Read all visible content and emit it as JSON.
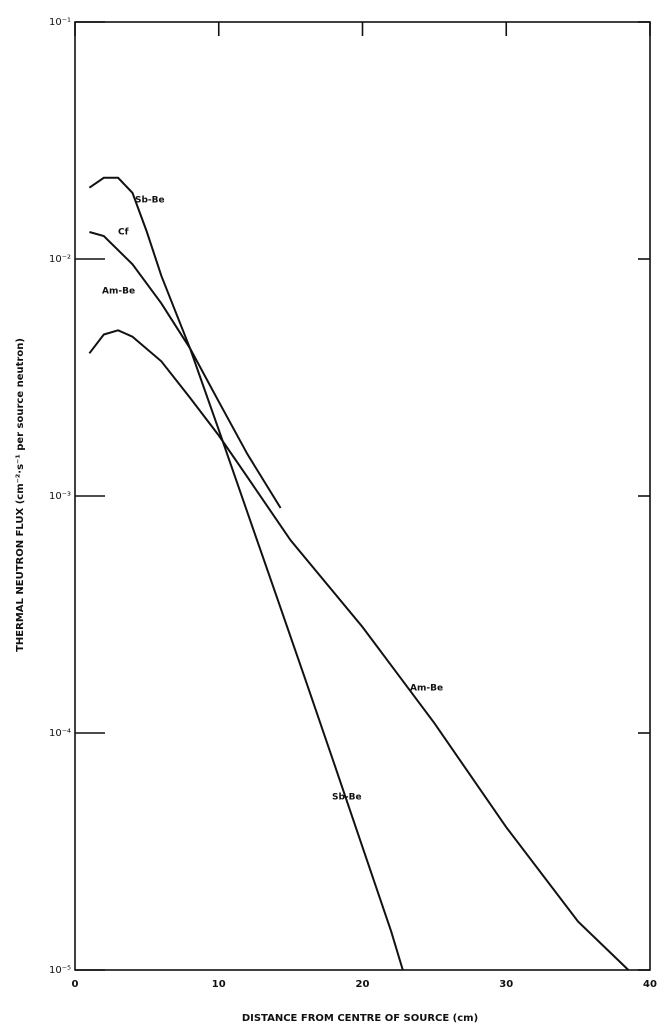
{
  "chart_data": {
    "type": "line",
    "x_label": "DISTANCE FROM CENTRE OF SOURCE (cm)",
    "y_label": "THERMAL NEUTRON FLUX (cm⁻²·s⁻¹ per source neutron)",
    "xlim": [
      0,
      40
    ],
    "xticks": [
      0,
      10,
      20,
      30,
      40
    ],
    "ylim": [
      1e-05,
      0.1
    ],
    "yticks": [
      {
        "value": 0.1,
        "label": "10⁻¹"
      },
      {
        "value": 0.01,
        "label": "10⁻²"
      },
      {
        "value": 0.001,
        "label": "10⁻³"
      },
      {
        "value": 0.0001,
        "label": "10⁻⁴"
      },
      {
        "value": 1e-05,
        "label": "10⁻⁵"
      }
    ],
    "y_log_scale": true,
    "grid": false,
    "series": [
      {
        "name": "Sb-Be",
        "color": "#111111",
        "x": [
          1,
          2,
          3,
          4,
          5,
          6,
          8,
          10,
          12,
          14,
          16,
          18,
          20,
          22,
          22.8
        ],
        "values": [
          0.02,
          0.022,
          0.022,
          0.019,
          0.013,
          0.0085,
          0.0042,
          0.0019,
          0.00085,
          0.00038,
          0.00017,
          7.5e-05,
          3.3e-05,
          1.45e-05,
          1e-05
        ]
      },
      {
        "name": "Cf",
        "color": "#111111",
        "x": [
          1,
          2,
          4,
          6,
          8,
          10,
          12,
          14.3
        ],
        "values": [
          0.013,
          0.0125,
          0.0095,
          0.0065,
          0.0042,
          0.0025,
          0.0015,
          0.00089
        ]
      },
      {
        "name": "Am-Be",
        "color": "#111111",
        "x": [
          1,
          2,
          3,
          4,
          6,
          8,
          10,
          12,
          15,
          20,
          25,
          30,
          35,
          38.5
        ],
        "values": [
          0.004,
          0.0048,
          0.005,
          0.0047,
          0.0037,
          0.0026,
          0.0018,
          0.0012,
          0.00065,
          0.00028,
          0.00011,
          4e-05,
          1.6e-05,
          1e-05
        ]
      }
    ],
    "annotations": [
      "Sb-Be",
      "Cf",
      "Am-Be",
      "Am-Be",
      "Sb-Be"
    ]
  }
}
